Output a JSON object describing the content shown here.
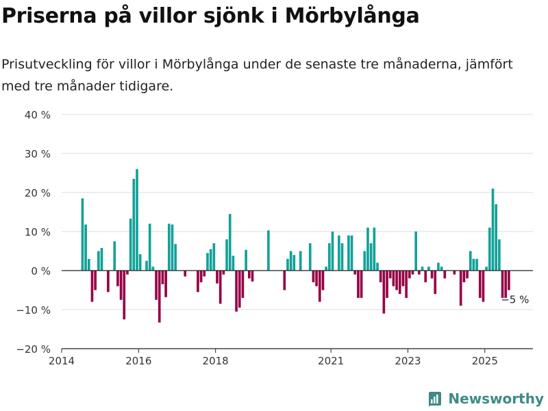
{
  "header": {
    "title": "Priserna på villor sjönk i Mörbylånga",
    "subtitle": "Prisutveckling för villor i Mörbylånga under de senaste tre månaderna, jämfört med tre månader tidigare."
  },
  "brand": {
    "name": "Newsworthy",
    "icon": "newsworthy-logo-icon",
    "color": "#3d8b84"
  },
  "colors": {
    "positive": "#12a19a",
    "negative": "#960046",
    "grid": "#dddddd",
    "axis": "#222222",
    "tick_text": "#333333"
  },
  "chart_data": {
    "type": "bar",
    "title": "Priserna på villor sjönk i Mörbylånga",
    "subtitle": "Prisutveckling för villor i Mörbylånga under de senaste tre månaderna, jämfört med tre månader tidigare.",
    "xlabel": "",
    "ylabel": "",
    "ylim": [
      -20,
      40
    ],
    "yticks": [
      -20,
      -10,
      0,
      10,
      20,
      30,
      40
    ],
    "ytick_labels": [
      "−20 %",
      "−10 %",
      "0 %",
      "10 %",
      "20 %",
      "30 %",
      "40 %"
    ],
    "xlim": [
      "2014-01",
      "2026-04"
    ],
    "xticks": [
      "2014-01",
      "2016-01",
      "2018-01",
      "2021-01",
      "2023-01",
      "2025-01"
    ],
    "xtick_labels": [
      "2014",
      "2016",
      "2018",
      "2021",
      "2023",
      "2025"
    ],
    "grid": true,
    "annotation": {
      "text": "−5 %",
      "x": "2025-07",
      "y": -5
    },
    "series": [
      {
        "values": [
          {
            "x": "2014-07",
            "y": 18.5
          },
          {
            "x": "2014-08",
            "y": 11.8
          },
          {
            "x": "2014-09",
            "y": 3
          },
          {
            "x": "2014-10",
            "y": -8
          },
          {
            "x": "2014-11",
            "y": -5
          },
          {
            "x": "2014-12",
            "y": 5
          },
          {
            "x": "2015-01",
            "y": 5.8
          },
          {
            "x": "2015-02",
            "y": 0
          },
          {
            "x": "2015-03",
            "y": -5.5
          },
          {
            "x": "2015-04",
            "y": 0
          },
          {
            "x": "2015-05",
            "y": 7.5
          },
          {
            "x": "2015-06",
            "y": -4
          },
          {
            "x": "2015-07",
            "y": -7.5
          },
          {
            "x": "2015-08",
            "y": -12.5
          },
          {
            "x": "2015-09",
            "y": -1
          },
          {
            "x": "2015-10",
            "y": 13.3
          },
          {
            "x": "2015-11",
            "y": 23.5
          },
          {
            "x": "2015-12",
            "y": 26
          },
          {
            "x": "2016-01",
            "y": 4.2
          },
          {
            "x": "2016-02",
            "y": 0
          },
          {
            "x": "2016-03",
            "y": 2.5
          },
          {
            "x": "2016-04",
            "y": 12
          },
          {
            "x": "2016-05",
            "y": 1
          },
          {
            "x": "2016-06",
            "y": -7.5
          },
          {
            "x": "2016-07",
            "y": -13.3
          },
          {
            "x": "2016-08",
            "y": -3.5
          },
          {
            "x": "2016-09",
            "y": -6.8
          },
          {
            "x": "2016-10",
            "y": 12
          },
          {
            "x": "2016-11",
            "y": 11.8
          },
          {
            "x": "2016-12",
            "y": 6.8
          },
          {
            "x": "2017-01",
            "y": 0
          },
          {
            "x": "2017-02",
            "y": 0
          },
          {
            "x": "2017-03",
            "y": -1.5
          },
          {
            "x": "2017-04",
            "y": 0
          },
          {
            "x": "2017-05",
            "y": 0
          },
          {
            "x": "2017-06",
            "y": 0
          },
          {
            "x": "2017-07",
            "y": -5.5
          },
          {
            "x": "2017-08",
            "y": -3
          },
          {
            "x": "2017-09",
            "y": -1.5
          },
          {
            "x": "2017-10",
            "y": 4.5
          },
          {
            "x": "2017-11",
            "y": 5.5
          },
          {
            "x": "2017-12",
            "y": 7
          },
          {
            "x": "2018-01",
            "y": -3.3
          },
          {
            "x": "2018-02",
            "y": -8.5
          },
          {
            "x": "2018-03",
            "y": -1
          },
          {
            "x": "2018-04",
            "y": 8
          },
          {
            "x": "2018-05",
            "y": 14.5
          },
          {
            "x": "2018-06",
            "y": 3.8
          },
          {
            "x": "2018-07",
            "y": -10.5
          },
          {
            "x": "2018-08",
            "y": -9.5
          },
          {
            "x": "2018-09",
            "y": -7
          },
          {
            "x": "2018-10",
            "y": 5.3
          },
          {
            "x": "2018-11",
            "y": -2
          },
          {
            "x": "2018-12",
            "y": -2.8
          },
          {
            "x": "2019-01",
            "y": 0
          },
          {
            "x": "2019-02",
            "y": 0
          },
          {
            "x": "2019-03",
            "y": 0
          },
          {
            "x": "2019-04",
            "y": 0
          },
          {
            "x": "2019-05",
            "y": 10.3
          },
          {
            "x": "2019-06",
            "y": 0
          },
          {
            "x": "2019-07",
            "y": 0
          },
          {
            "x": "2019-08",
            "y": 0
          },
          {
            "x": "2019-09",
            "y": 0
          },
          {
            "x": "2019-10",
            "y": -5
          },
          {
            "x": "2019-11",
            "y": 3
          },
          {
            "x": "2019-12",
            "y": 5
          },
          {
            "x": "2020-01",
            "y": 4
          },
          {
            "x": "2020-02",
            "y": 0
          },
          {
            "x": "2020-03",
            "y": 5
          },
          {
            "x": "2020-04",
            "y": 0
          },
          {
            "x": "2020-05",
            "y": 0
          },
          {
            "x": "2020-06",
            "y": 7
          },
          {
            "x": "2020-07",
            "y": -3
          },
          {
            "x": "2020-08",
            "y": -4
          },
          {
            "x": "2020-09",
            "y": -8
          },
          {
            "x": "2020-10",
            "y": -5
          },
          {
            "x": "2020-11",
            "y": 1
          },
          {
            "x": "2020-12",
            "y": 7
          },
          {
            "x": "2021-01",
            "y": 10
          },
          {
            "x": "2021-02",
            "y": 0
          },
          {
            "x": "2021-03",
            "y": 9
          },
          {
            "x": "2021-04",
            "y": 7
          },
          {
            "x": "2021-05",
            "y": 0
          },
          {
            "x": "2021-06",
            "y": 9
          },
          {
            "x": "2021-07",
            "y": 9
          },
          {
            "x": "2021-08",
            "y": -1
          },
          {
            "x": "2021-09",
            "y": -7
          },
          {
            "x": "2021-10",
            "y": -7
          },
          {
            "x": "2021-11",
            "y": 5
          },
          {
            "x": "2021-12",
            "y": 11
          },
          {
            "x": "2022-01",
            "y": 7
          },
          {
            "x": "2022-02",
            "y": 11
          },
          {
            "x": "2022-03",
            "y": 2
          },
          {
            "x": "2022-04",
            "y": -3
          },
          {
            "x": "2022-05",
            "y": -11
          },
          {
            "x": "2022-06",
            "y": -7
          },
          {
            "x": "2022-07",
            "y": -2
          },
          {
            "x": "2022-08",
            "y": -4
          },
          {
            "x": "2022-09",
            "y": -5
          },
          {
            "x": "2022-10",
            "y": -6
          },
          {
            "x": "2022-11",
            "y": -4
          },
          {
            "x": "2022-12",
            "y": -7
          },
          {
            "x": "2023-01",
            "y": -2
          },
          {
            "x": "2023-02",
            "y": -1
          },
          {
            "x": "2023-03",
            "y": 10
          },
          {
            "x": "2023-04",
            "y": -1
          },
          {
            "x": "2023-05",
            "y": 1
          },
          {
            "x": "2023-06",
            "y": -3
          },
          {
            "x": "2023-07",
            "y": 1
          },
          {
            "x": "2023-08",
            "y": -2
          },
          {
            "x": "2023-09",
            "y": -6
          },
          {
            "x": "2023-10",
            "y": 2
          },
          {
            "x": "2023-11",
            "y": 1
          },
          {
            "x": "2023-12",
            "y": -2
          },
          {
            "x": "2024-01",
            "y": 0
          },
          {
            "x": "2024-02",
            "y": 0
          },
          {
            "x": "2024-03",
            "y": -1
          },
          {
            "x": "2024-04",
            "y": 0
          },
          {
            "x": "2024-05",
            "y": -9
          },
          {
            "x": "2024-06",
            "y": -3
          },
          {
            "x": "2024-07",
            "y": -2
          },
          {
            "x": "2024-08",
            "y": 5
          },
          {
            "x": "2024-09",
            "y": 3
          },
          {
            "x": "2024-10",
            "y": 3
          },
          {
            "x": "2024-11",
            "y": -7
          },
          {
            "x": "2024-12",
            "y": -8
          },
          {
            "x": "2025-01",
            "y": 1
          },
          {
            "x": "2025-02",
            "y": 11
          },
          {
            "x": "2025-03",
            "y": 21
          },
          {
            "x": "2025-04",
            "y": 17
          },
          {
            "x": "2025-05",
            "y": 8
          },
          {
            "x": "2025-06",
            "y": -7
          },
          {
            "x": "2025-07",
            "y": -7
          },
          {
            "x": "2025-08",
            "y": -5
          }
        ]
      }
    ]
  }
}
